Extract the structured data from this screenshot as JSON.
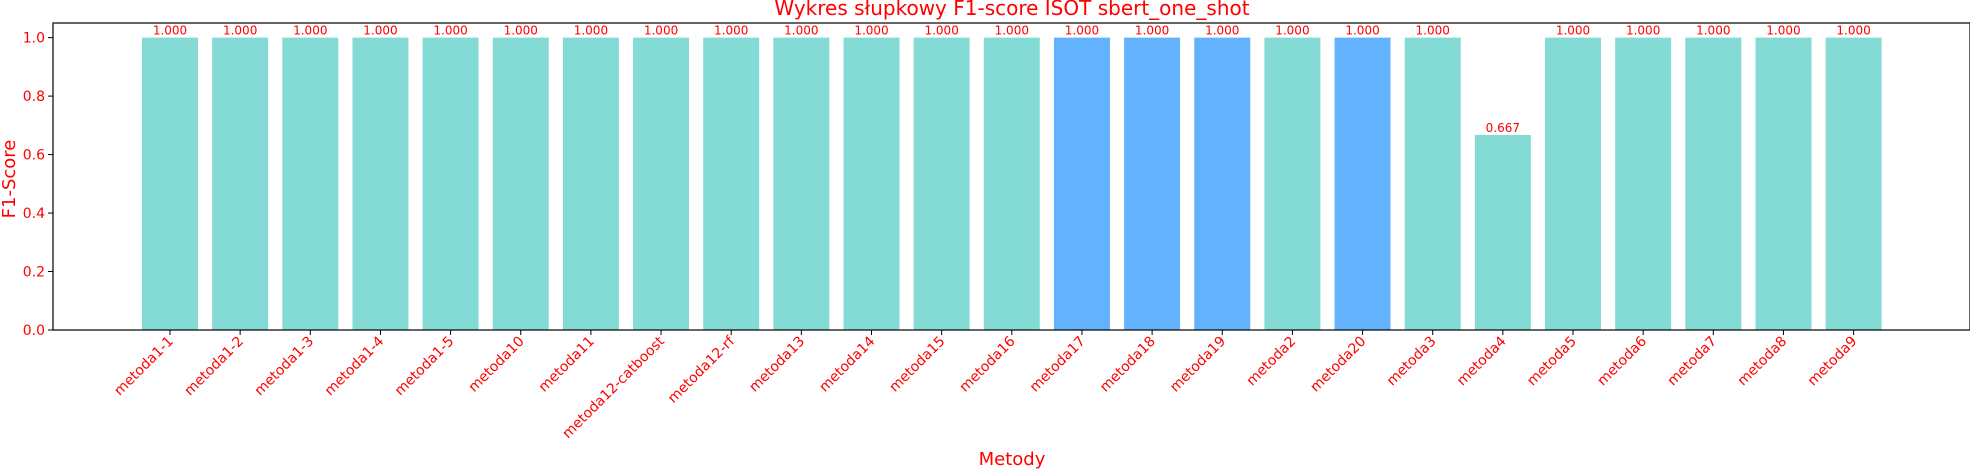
{
  "chart_data": {
    "type": "bar",
    "title": "Wykres słupkowy F1-score ISOT sbert_one_shot",
    "xlabel": "Metody",
    "ylabel": "F1-Score",
    "ylim": [
      0,
      1.05
    ],
    "yticks": [
      "0.0",
      "0.2",
      "0.4",
      "0.6",
      "0.8",
      "1.0"
    ],
    "grid": false,
    "categories": [
      "metoda1-1",
      "metoda1-2",
      "metoda1-3",
      "metoda1-4",
      "metoda1-5",
      "metoda10",
      "metoda11",
      "metoda12-catboost",
      "metoda12-rf",
      "metoda13",
      "metoda14",
      "metoda15",
      "metoda16",
      "metoda17",
      "metoda18",
      "metoda19",
      "metoda2",
      "metoda20",
      "metoda3",
      "metoda4",
      "metoda5",
      "metoda6",
      "metoda7",
      "metoda8",
      "metoda9"
    ],
    "values": [
      1.0,
      1.0,
      1.0,
      1.0,
      1.0,
      1.0,
      1.0,
      1.0,
      1.0,
      1.0,
      1.0,
      1.0,
      1.0,
      1.0,
      1.0,
      1.0,
      1.0,
      1.0,
      1.0,
      0.667,
      1.0,
      1.0,
      1.0,
      1.0,
      1.0
    ],
    "data_labels": [
      "1.000",
      "1.000",
      "1.000",
      "1.000",
      "1.000",
      "1.000",
      "1.000",
      "1.000",
      "1.000",
      "1.000",
      "1.000",
      "1.000",
      "1.000",
      "1.000",
      "1.000",
      "1.000",
      "1.000",
      "1.000",
      "1.000",
      "0.667",
      "1.000",
      "1.000",
      "1.000",
      "1.000",
      "1.000"
    ],
    "highlighted": [
      "metoda17",
      "metoda18",
      "metoda19",
      "metoda20"
    ],
    "colors": {
      "bar": "#84dbd6",
      "bar_highlight": "#62b2fd",
      "text": "#ff0000",
      "axis": "#000000"
    }
  }
}
